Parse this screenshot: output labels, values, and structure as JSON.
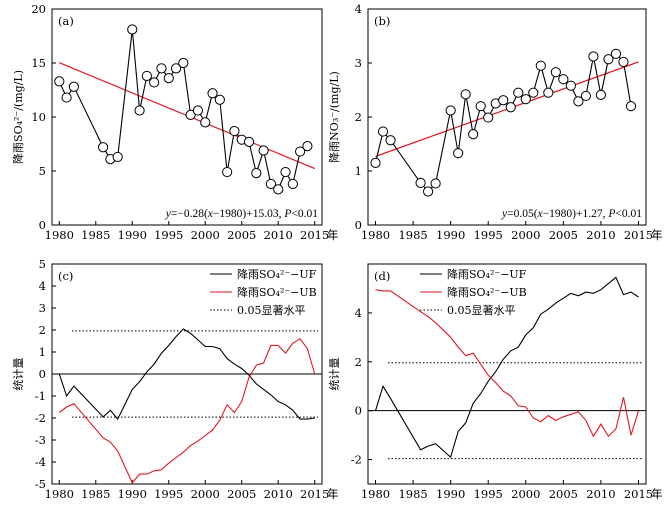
{
  "chart_data": [
    {
      "type": "line",
      "panel": "(a)",
      "ylabel": "降雨SO₄²⁻/(mg/L)",
      "xunit": "年",
      "xlim": [
        1979,
        2016
      ],
      "ylim": [
        0,
        20
      ],
      "yticks": [
        0,
        5,
        10,
        15,
        20
      ],
      "xticks": [
        1980,
        1985,
        1990,
        1995,
        2000,
        2005,
        2010,
        2015
      ],
      "series": [
        {
          "x": [
            1980,
            1981,
            1982,
            1986,
            1987,
            1988,
            1990,
            1991,
            1992,
            1993,
            1994,
            1995,
            1996,
            1997,
            1998,
            1999,
            2000,
            2001,
            2002,
            2003,
            2004,
            2005,
            2006,
            2007,
            2008,
            2009,
            2010,
            2011,
            2012,
            2013,
            2014,
            2015
          ],
          "y": [
            13.3,
            11.8,
            12.8,
            7.2,
            6.1,
            6.3,
            18.1,
            10.6,
            13.8,
            13.2,
            14.5,
            13.6,
            14.5,
            15.0,
            10.2,
            10.6,
            9.5,
            12.2,
            11.6,
            4.9,
            8.7,
            7.9,
            7.7,
            4.8,
            6.9,
            3.8,
            3.3,
            4.9,
            3.8,
            6.8,
            7.3,
            null
          ]
        }
      ],
      "trend": {
        "x1": 1980,
        "x2": 2015,
        "slope": -0.28,
        "intercept": 15.03
      },
      "annotation_parts": [
        "y",
        "=−0.28(",
        "x",
        "−1980)+15.03, ",
        "P",
        "<0.01"
      ]
    },
    {
      "type": "line",
      "panel": "(b)",
      "ylabel": "降雨NO₃⁻/(mg/L)",
      "xunit": "年",
      "xlim": [
        1979,
        2016
      ],
      "ylim": [
        0,
        4
      ],
      "yticks": [
        0,
        1,
        2,
        3,
        4
      ],
      "xticks": [
        1980,
        1985,
        1990,
        1995,
        2000,
        2005,
        2010,
        2015
      ],
      "series": [
        {
          "x": [
            1980,
            1981,
            1982,
            1986,
            1987,
            1988,
            1990,
            1991,
            1992,
            1993,
            1994,
            1995,
            1996,
            1997,
            1998,
            1999,
            2000,
            2001,
            2002,
            2003,
            2004,
            2005,
            2006,
            2007,
            2008,
            2009,
            2010,
            2011,
            2012,
            2013,
            2014,
            2015
          ],
          "y": [
            1.15,
            1.73,
            1.57,
            0.78,
            0.62,
            0.77,
            2.12,
            1.33,
            2.42,
            1.68,
            2.2,
            1.99,
            2.25,
            2.31,
            2.18,
            2.45,
            2.33,
            2.45,
            2.95,
            2.45,
            2.83,
            2.7,
            2.58,
            2.29,
            2.39,
            3.12,
            2.41,
            3.07,
            3.17,
            3.02,
            2.2,
            null
          ]
        }
      ],
      "trend": {
        "x1": 1980,
        "x2": 2015,
        "slope": 0.05,
        "intercept": 1.27
      },
      "annotation_parts": [
        "y",
        "=0.05(",
        "x",
        "−1980)+1.27, ",
        "P",
        "<0.01"
      ]
    },
    {
      "type": "line",
      "panel": "(c)",
      "ylabel": "统计量",
      "xunit": "年",
      "xlim": [
        1979,
        2016
      ],
      "ylim": [
        -5,
        5
      ],
      "yticks": [
        -5,
        -4,
        -3,
        -2,
        -1,
        0,
        1,
        2,
        3,
        4,
        5
      ],
      "xticks": [
        1980,
        1985,
        1990,
        1995,
        2000,
        2005,
        2010,
        2015
      ],
      "reference_lines": [
        0,
        1.96,
        -1.96
      ],
      "series": [
        {
          "name": "降雨SO₄²⁻−UF",
          "color": "#000000",
          "x": [
            1980,
            1981,
            1982,
            1986,
            1987,
            1988,
            1990,
            1991,
            1992,
            1993,
            1994,
            1995,
            1996,
            1997,
            1998,
            1999,
            2000,
            2001,
            2002,
            2003,
            2004,
            2005,
            2006,
            2007,
            2008,
            2009,
            2010,
            2011,
            2012,
            2013,
            2014,
            2015
          ],
          "y": [
            0.0,
            -1.0,
            -0.55,
            -1.95,
            -1.65,
            -2.05,
            -0.7,
            -0.35,
            0.1,
            0.45,
            0.95,
            1.3,
            1.7,
            2.05,
            1.85,
            1.55,
            1.25,
            1.25,
            1.15,
            0.7,
            0.45,
            0.25,
            -0.05,
            -0.45,
            -0.7,
            -0.95,
            -1.25,
            -1.4,
            -1.65,
            -2.05,
            -2.05,
            -2.0
          ]
        },
        {
          "name": "降雨SO₄²⁻−UB",
          "color": "#e3171f",
          "x": [
            1980,
            1981,
            1982,
            1986,
            1987,
            1988,
            1990,
            1991,
            1992,
            1993,
            1994,
            1995,
            1996,
            1997,
            1998,
            1999,
            2000,
            2001,
            2002,
            2003,
            2004,
            2005,
            2006,
            2007,
            2008,
            2009,
            2010,
            2011,
            2012,
            2013,
            2014,
            2015
          ],
          "y": [
            -1.75,
            -1.5,
            -1.35,
            -2.9,
            -3.1,
            -3.5,
            -4.95,
            -4.55,
            -4.55,
            -4.4,
            -4.35,
            -4.05,
            -3.8,
            -3.55,
            -3.25,
            -3.05,
            -2.8,
            -2.55,
            -2.1,
            -1.4,
            -1.75,
            -1.25,
            -0.15,
            0.4,
            0.5,
            1.3,
            1.3,
            0.95,
            1.4,
            1.6,
            1.15,
            0.0
          ]
        }
      ],
      "legend": [
        "降雨SO₄²⁻−UF",
        "降雨SO₄²⁻−UB",
        "0.05显著水平"
      ],
      "legend_position": "top-right"
    },
    {
      "type": "line",
      "panel": "(d)",
      "ylabel": "统计量",
      "xunit": "年",
      "xlim": [
        1979,
        2016
      ],
      "ylim": [
        -3,
        6
      ],
      "yticks": [
        -2,
        0,
        2,
        4
      ],
      "xticks": [
        1980,
        1985,
        1990,
        1995,
        2000,
        2005,
        2010,
        2015
      ],
      "reference_lines": [
        0,
        1.96,
        -1.96
      ],
      "series": [
        {
          "name": "降雨SO₄²⁻−UF",
          "color": "#000000",
          "x": [
            1980,
            1981,
            1982,
            1986,
            1987,
            1988,
            1990,
            1991,
            1992,
            1993,
            1994,
            1995,
            1996,
            1997,
            1998,
            1999,
            2000,
            2001,
            2002,
            2003,
            2004,
            2005,
            2006,
            2007,
            2008,
            2009,
            2010,
            2011,
            2012,
            2013,
            2014,
            2015
          ],
          "y": [
            0.0,
            1.0,
            0.5,
            -1.6,
            -1.45,
            -1.35,
            -1.9,
            -0.85,
            -0.5,
            0.3,
            0.7,
            1.2,
            1.6,
            2.1,
            2.45,
            2.6,
            3.1,
            3.4,
            3.95,
            4.15,
            4.4,
            4.6,
            4.8,
            4.7,
            4.85,
            4.8,
            4.95,
            5.2,
            5.45,
            4.75,
            4.85,
            4.65
          ]
        },
        {
          "name": "降雨SO₄²⁻−UB",
          "color": "#e3171f",
          "x": [
            1980,
            1981,
            1982,
            1986,
            1987,
            1988,
            1990,
            1991,
            1992,
            1993,
            1994,
            1995,
            1996,
            1997,
            1998,
            1999,
            2000,
            2001,
            2002,
            2003,
            2004,
            2005,
            2006,
            2007,
            2008,
            2009,
            2010,
            2011,
            2012,
            2013,
            2014,
            2015
          ],
          "y": [
            4.95,
            4.9,
            4.9,
            4.05,
            3.85,
            3.6,
            3.0,
            2.6,
            2.25,
            2.35,
            1.9,
            1.45,
            1.15,
            0.8,
            0.6,
            0.2,
            0.15,
            -0.3,
            -0.45,
            -0.2,
            -0.4,
            -0.25,
            -0.15,
            -0.05,
            -0.4,
            -1.05,
            -0.55,
            -1.05,
            -0.75,
            0.55,
            -1.0,
            0.0
          ]
        }
      ],
      "legend": [
        "降雨SO₄²⁻−UF",
        "降雨SO₄²⁻−UB",
        "0.05显著水平"
      ],
      "legend_position": "top-left"
    }
  ]
}
